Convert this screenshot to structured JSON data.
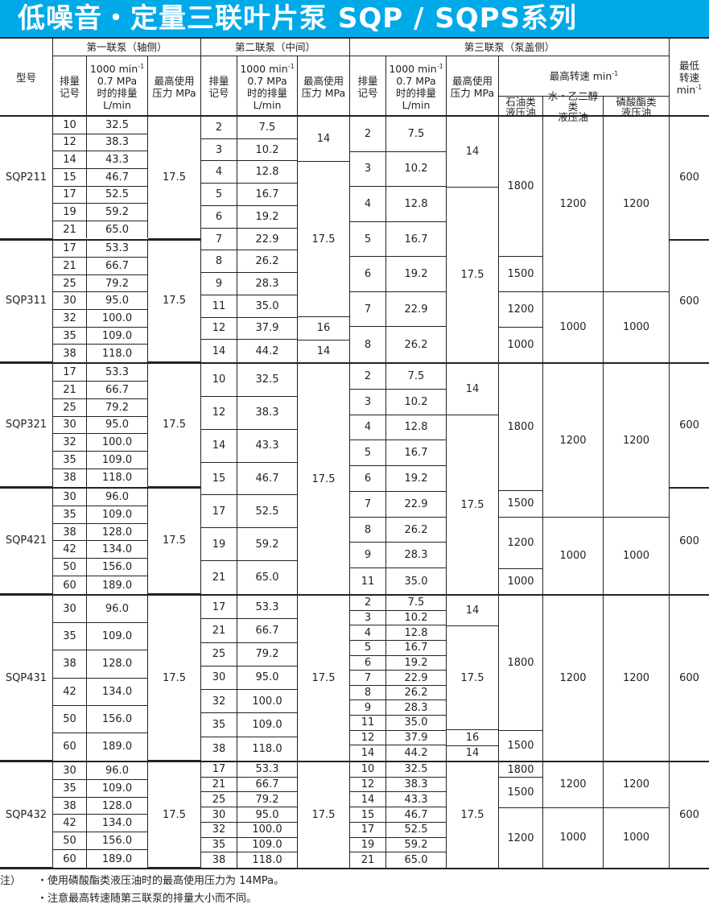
{
  "title": "低噪音・定量三联叶片泵 SQP / SQPS系列",
  "header": {
    "model": "型号",
    "pump1": "第一联泵（轴侧）",
    "pump2": "第二联泵（中间）",
    "pump3": "第三联泵（泵盖侧）",
    "code_1": "排量",
    "code_2": "记号",
    "flow_1": "1000 min",
    "flow_sup": "-1",
    "flow_2": "0.7 MPa",
    "flow_3": "时的排量",
    "flow_4": "L/min",
    "pressure_1": "最高使用",
    "pressure_2": "压力 MPa",
    "max_speed": "最高转速 min",
    "max_speed_sup": "-1",
    "oil_1": "石油类",
    "oil_2": "液压油",
    "water_1": "水・乙二醇类",
    "water_2": "液压油",
    "phos_1": "磷酸酯类",
    "phos_2": "液压油",
    "min_1": "最低",
    "min_2": "转速",
    "min_3": "min",
    "min_sup": "-1"
  },
  "bands": [
    {
      "groups": [
        {
          "model": "SQP211",
          "pressure": "17.5",
          "min_speed": "600",
          "rows": [
            [
              "10",
              "32.5"
            ],
            [
              "12",
              "38.3"
            ],
            [
              "14",
              "43.3"
            ],
            [
              "15",
              "46.7"
            ],
            [
              "17",
              "52.5"
            ],
            [
              "19",
              "59.2"
            ],
            [
              "21",
              "65.0"
            ]
          ]
        },
        {
          "model": "SQP311",
          "pressure": "17.5",
          "min_speed": "600",
          "rows": [
            [
              "17",
              "53.3"
            ],
            [
              "21",
              "66.7"
            ],
            [
              "25",
              "79.2"
            ],
            [
              "30",
              "95.0"
            ],
            [
              "32",
              "100.0"
            ],
            [
              "35",
              "109.0"
            ],
            [
              "38",
              "118.0"
            ]
          ]
        }
      ],
      "pump2": {
        "rows": [
          [
            "2",
            "7.5"
          ],
          [
            "3",
            "10.2"
          ],
          [
            "4",
            "12.8"
          ],
          [
            "5",
            "16.7"
          ],
          [
            "6",
            "19.2"
          ],
          [
            "7",
            "22.9"
          ],
          [
            "8",
            "26.2"
          ],
          [
            "9",
            "28.3"
          ],
          [
            "11",
            "35.0"
          ],
          [
            "12",
            "37.9"
          ],
          [
            "14",
            "44.2"
          ]
        ],
        "pressure": [
          {
            "value": "14",
            "span": 2
          },
          {
            "value": "17.5",
            "span": 7
          },
          {
            "value": "16",
            "span": 1
          },
          {
            "value": "14",
            "span": 1
          }
        ]
      },
      "pump3": {
        "rows": [
          [
            "2",
            "7.5"
          ],
          [
            "3",
            "10.2"
          ],
          [
            "4",
            "12.8"
          ],
          [
            "5",
            "16.7"
          ],
          [
            "6",
            "19.2"
          ],
          [
            "7",
            "22.9"
          ],
          [
            "8",
            "26.2"
          ]
        ],
        "pressure": [
          {
            "value": "14",
            "span": 2
          },
          {
            "value": "17.5",
            "span": 5
          }
        ],
        "oil": [
          {
            "value": "1800",
            "span": 4
          },
          {
            "value": "1500",
            "span": 1
          },
          {
            "value": "1200",
            "span": 1
          },
          {
            "value": "1000",
            "span": 1
          }
        ],
        "water_glycol": [
          {
            "value": "1200",
            "span": 5
          },
          {
            "value": "1000",
            "span": 2
          }
        ],
        "phosphate": [
          {
            "value": "1200",
            "span": 5
          },
          {
            "value": "1000",
            "span": 2
          }
        ]
      }
    },
    {
      "groups": [
        {
          "model": "SQP321",
          "pressure": "17.5",
          "min_speed": "600",
          "rows": [
            [
              "17",
              "53.3"
            ],
            [
              "21",
              "66.7"
            ],
            [
              "25",
              "79.2"
            ],
            [
              "30",
              "95.0"
            ],
            [
              "32",
              "100.0"
            ],
            [
              "35",
              "109.0"
            ],
            [
              "38",
              "118.0"
            ]
          ]
        },
        {
          "model": "SQP421",
          "pressure": "17.5",
          "min_speed": "600",
          "rows": [
            [
              "30",
              "96.0"
            ],
            [
              "35",
              "109.0"
            ],
            [
              "38",
              "128.0"
            ],
            [
              "42",
              "134.0"
            ],
            [
              "50",
              "156.0"
            ],
            [
              "60",
              "189.0"
            ]
          ]
        }
      ],
      "pump2": {
        "rows": [
          [
            "10",
            "32.5"
          ],
          [
            "12",
            "38.3"
          ],
          [
            "14",
            "43.3"
          ],
          [
            "15",
            "46.7"
          ],
          [
            "17",
            "52.5"
          ],
          [
            "19",
            "59.2"
          ],
          [
            "21",
            "65.0"
          ]
        ],
        "pressure": [
          {
            "value": "17.5",
            "span": 7
          }
        ]
      },
      "pump3": {
        "rows": [
          [
            "2",
            "7.5"
          ],
          [
            "3",
            "10.2"
          ],
          [
            "4",
            "12.8"
          ],
          [
            "5",
            "16.7"
          ],
          [
            "6",
            "19.2"
          ],
          [
            "7",
            "22.9"
          ],
          [
            "8",
            "26.2"
          ],
          [
            "9",
            "28.3"
          ],
          [
            "11",
            "35.0"
          ]
        ],
        "pressure": [
          {
            "value": "14",
            "span": 2
          },
          {
            "value": "17.5",
            "span": 7
          }
        ],
        "oil": [
          {
            "value": "1800",
            "span": 5
          },
          {
            "value": "1500",
            "span": 1
          },
          {
            "value": "1200",
            "span": 2
          },
          {
            "value": "1000",
            "span": 1
          }
        ],
        "water_glycol": [
          {
            "value": "1200",
            "span": 6
          },
          {
            "value": "1000",
            "span": 3
          }
        ],
        "phosphate": [
          {
            "value": "1200",
            "span": 6
          },
          {
            "value": "1000",
            "span": 3
          }
        ]
      }
    },
    {
      "groups": [
        {
          "model": "SQP431",
          "pressure": "17.5",
          "min_speed": "600",
          "rows": [
            [
              "30",
              "96.0"
            ],
            [
              "35",
              "109.0"
            ],
            [
              "38",
              "128.0"
            ],
            [
              "42",
              "134.0"
            ],
            [
              "50",
              "156.0"
            ],
            [
              "60",
              "189.0"
            ]
          ]
        }
      ],
      "pump2": {
        "rows": [
          [
            "17",
            "53.3"
          ],
          [
            "21",
            "66.7"
          ],
          [
            "25",
            "79.2"
          ],
          [
            "30",
            "95.0"
          ],
          [
            "32",
            "100.0"
          ],
          [
            "35",
            "109.0"
          ],
          [
            "38",
            "118.0"
          ]
        ],
        "pressure": [
          {
            "value": "17.5",
            "span": 7
          }
        ]
      },
      "pump3": {
        "rows": [
          [
            "2",
            "7.5"
          ],
          [
            "3",
            "10.2"
          ],
          [
            "4",
            "12.8"
          ],
          [
            "5",
            "16.7"
          ],
          [
            "6",
            "19.2"
          ],
          [
            "7",
            "22.9"
          ],
          [
            "8",
            "26.2"
          ],
          [
            "9",
            "28.3"
          ],
          [
            "11",
            "35.0"
          ],
          [
            "12",
            "37.9"
          ],
          [
            "14",
            "44.2"
          ]
        ],
        "pressure": [
          {
            "value": "14",
            "span": 2
          },
          {
            "value": "17.5",
            "span": 7
          },
          {
            "value": "16",
            "span": 1
          },
          {
            "value": "14",
            "span": 1
          }
        ],
        "oil": [
          {
            "value": "1800",
            "span": 9
          },
          {
            "value": "1500",
            "span": 2
          }
        ],
        "water_glycol": [
          {
            "value": "1200",
            "span": 11
          }
        ],
        "phosphate": [
          {
            "value": "1200",
            "span": 11
          }
        ]
      }
    },
    {
      "groups": [
        {
          "model": "SQP432",
          "pressure": "17.5",
          "min_speed": "600",
          "rows": [
            [
              "30",
              "96.0"
            ],
            [
              "35",
              "109.0"
            ],
            [
              "38",
              "128.0"
            ],
            [
              "42",
              "134.0"
            ],
            [
              "50",
              "156.0"
            ],
            [
              "60",
              "189.0"
            ]
          ]
        }
      ],
      "pump2": {
        "rows": [
          [
            "17",
            "53.3"
          ],
          [
            "21",
            "66.7"
          ],
          [
            "25",
            "79.2"
          ],
          [
            "30",
            "95.0"
          ],
          [
            "32",
            "100.0"
          ],
          [
            "35",
            "109.0"
          ],
          [
            "38",
            "118.0"
          ]
        ],
        "pressure": [
          {
            "value": "17.5",
            "span": 7
          }
        ]
      },
      "pump3": {
        "rows": [
          [
            "10",
            "32.5"
          ],
          [
            "12",
            "38.3"
          ],
          [
            "14",
            "43.3"
          ],
          [
            "15",
            "46.7"
          ],
          [
            "17",
            "52.5"
          ],
          [
            "19",
            "59.2"
          ],
          [
            "21",
            "65.0"
          ]
        ],
        "pressure": [
          {
            "value": "17.5",
            "span": 7
          }
        ],
        "oil": [
          {
            "value": "1800",
            "span": 1
          },
          {
            "value": "1500",
            "span": 2
          },
          {
            "value": "1200",
            "span": 4
          }
        ],
        "water_glycol": [
          {
            "value": "1200",
            "span": 3
          },
          {
            "value": "1000",
            "span": 4
          }
        ],
        "phosphate": [
          {
            "value": "1200",
            "span": 3
          },
          {
            "value": "1000",
            "span": 4
          }
        ]
      }
    }
  ],
  "notes": {
    "label": "注）",
    "items": [
      "・使用磷酸酯类液压油时的最高使用压力为 14MPa。",
      "・注意最高转速随第三联泵的排量大小而不同。"
    ]
  },
  "colors": {
    "title_bg": "#00a9e8",
    "title_text": "#ffffff"
  }
}
